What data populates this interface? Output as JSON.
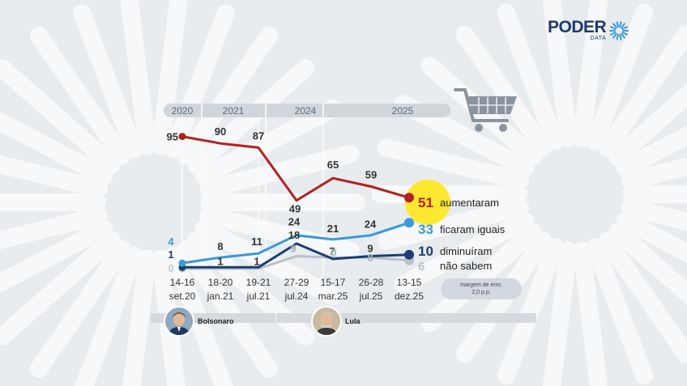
{
  "brand": {
    "name": "PODER",
    "sub": "DATA"
  },
  "chart_data": {
    "type": "line",
    "title": "",
    "xlabel": "",
    "ylabel": "",
    "ylim": [
      0,
      100
    ],
    "grid": false,
    "legend": "right",
    "years": [
      "2020",
      "2021",
      "2024",
      "2025"
    ],
    "categories": [
      {
        "days": "14-16",
        "month": "set.20"
      },
      {
        "days": "18-20",
        "month": "jan.21"
      },
      {
        "days": "19-21",
        "month": "jul.21"
      },
      {
        "days": "27-29",
        "month": "jul.24"
      },
      {
        "days": "15-17",
        "month": "mar.25"
      },
      {
        "days": "26-28",
        "month": "jul.25"
      },
      {
        "days": "13-15",
        "month": "dez.25"
      }
    ],
    "series": [
      {
        "key": "aumentaram",
        "name": "aumentaram",
        "color": "#b22222",
        "values": [
          95,
          90,
          87,
          49,
          65,
          59,
          51
        ]
      },
      {
        "key": "iguais",
        "name": "ficaram iguais",
        "color": "#3a9ad9",
        "values": [
          4,
          8,
          11,
          24,
          21,
          24,
          33
        ]
      },
      {
        "key": "diminuiram",
        "name": "diminuíram",
        "color": "#1a3f73",
        "values": [
          1,
          1,
          1,
          18,
          7,
          9,
          10
        ]
      },
      {
        "key": "naosabem",
        "name": "não sabem",
        "color": "#b9c0c7",
        "values": [
          0,
          0,
          0,
          9,
          8,
          8,
          6
        ]
      }
    ],
    "margin_of_error": {
      "line1": "margem de erro:",
      "line2": "2,0 p.p."
    },
    "presidents": [
      {
        "name": "Bolsonaro"
      },
      {
        "name": "Lula"
      }
    ]
  }
}
